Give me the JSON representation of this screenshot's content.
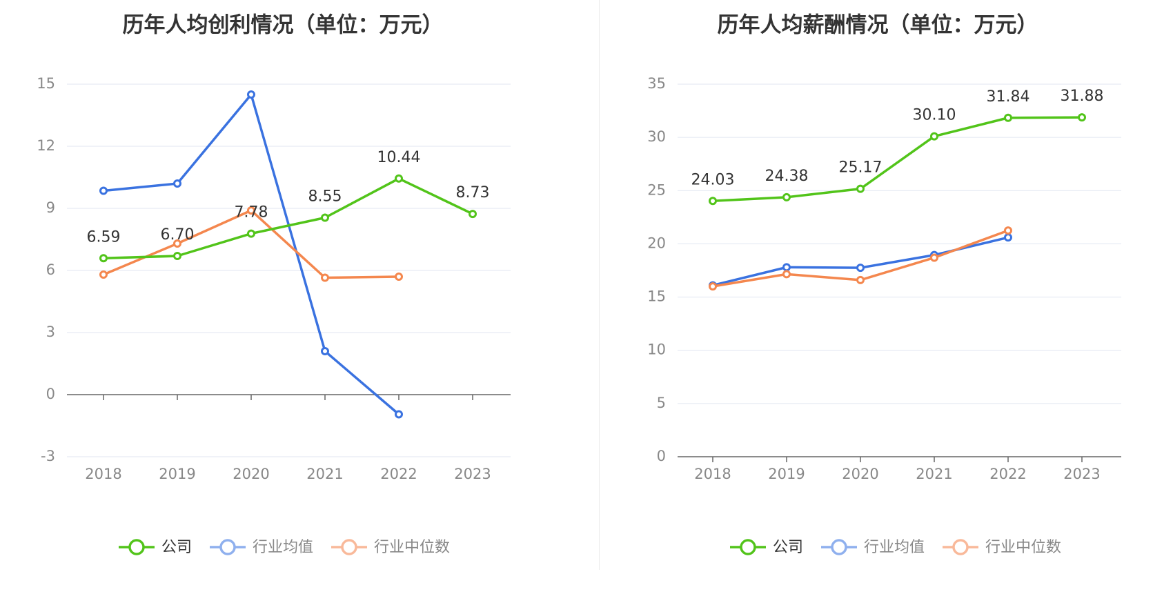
{
  "chart_data": [
    {
      "type": "line",
      "title": "历年人均创利情况（单位：万元）",
      "categories": [
        "2018",
        "2019",
        "2020",
        "2021",
        "2022",
        "2023"
      ],
      "ylim": [
        -3,
        15
      ],
      "yticks": [
        "15",
        "12",
        "9",
        "6",
        "3",
        "0",
        "-3"
      ],
      "grid": true,
      "legend_position": "bottom",
      "series": [
        {
          "name": "公司",
          "color": "#52c41a",
          "values": [
            6.59,
            6.7,
            7.78,
            8.55,
            10.44,
            8.73
          ],
          "labels": [
            "6.59",
            "6.70",
            "7.78",
            "8.55",
            "10.44",
            "8.73"
          ]
        },
        {
          "name": "行业均值",
          "color": "#3a72e0",
          "values": [
            9.85,
            10.2,
            14.5,
            2.1,
            -0.95,
            null
          ]
        },
        {
          "name": "行业中位数",
          "color": "#f4874e",
          "values": [
            5.8,
            7.3,
            8.9,
            5.65,
            5.7,
            null
          ]
        }
      ]
    },
    {
      "type": "line",
      "title": "历年人均薪酬情况（单位：万元）",
      "categories": [
        "2018",
        "2019",
        "2020",
        "2021",
        "2022",
        "2023"
      ],
      "ylim": [
        0,
        35
      ],
      "yticks": [
        "35",
        "30",
        "25",
        "20",
        "15",
        "10",
        "5",
        "0"
      ],
      "grid": true,
      "legend_position": "bottom",
      "series": [
        {
          "name": "公司",
          "color": "#52c41a",
          "values": [
            24.03,
            24.38,
            25.17,
            30.1,
            31.84,
            31.88
          ],
          "labels": [
            "24.03",
            "24.38",
            "25.17",
            "30.10",
            "31.84",
            "31.88"
          ]
        },
        {
          "name": "行业均值",
          "color": "#3a72e0",
          "values": [
            16.1,
            17.8,
            17.75,
            18.95,
            20.6,
            null
          ]
        },
        {
          "name": "行业中位数",
          "color": "#f4874e",
          "values": [
            16.0,
            17.15,
            16.6,
            18.7,
            21.25,
            null
          ]
        }
      ]
    }
  ]
}
